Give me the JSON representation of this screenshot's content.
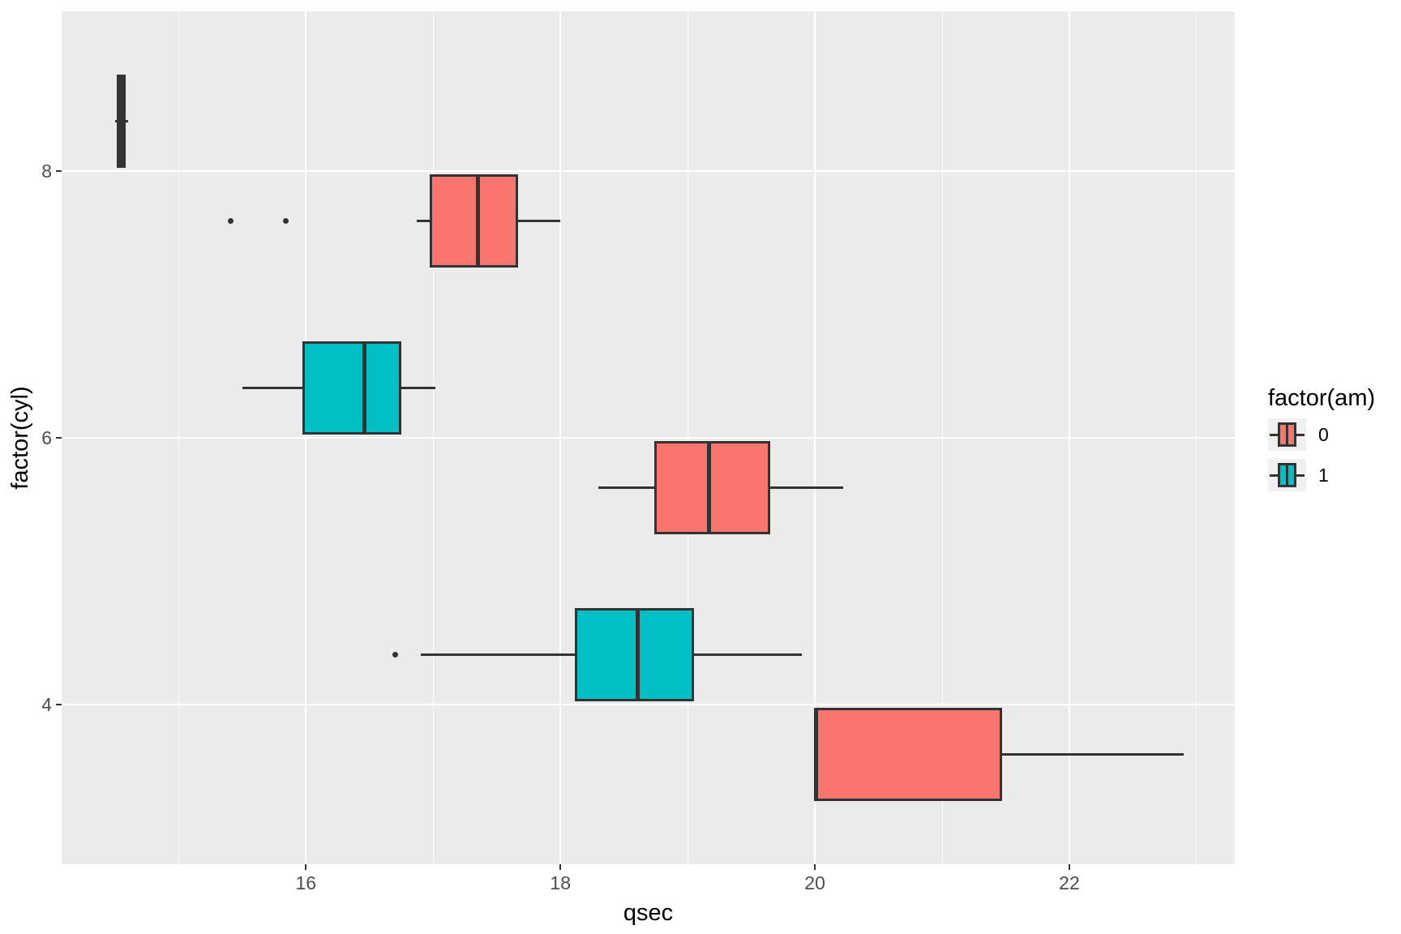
{
  "chart_data": {
    "type": "boxplot",
    "orientation": "horizontal",
    "xlabel": "qsec",
    "ylabel": "factor(cyl)",
    "x_ticks": [
      16,
      18,
      20,
      22
    ],
    "x_minor_ticks": [
      15,
      17,
      19,
      21,
      23
    ],
    "xlim": [
      14.08,
      23.3
    ],
    "y_categories": [
      "4",
      "6",
      "8"
    ],
    "legend": {
      "title": "factor(am)",
      "position": "right",
      "entries": [
        {
          "label": "0",
          "color": "#F8766D"
        },
        {
          "label": "1",
          "color": "#00BFC4"
        }
      ]
    },
    "series": [
      {
        "cyl": "8",
        "am": "1",
        "fill": "#00BFC4",
        "whisker_low": 14.5,
        "q1": 14.525,
        "median": 14.55,
        "q3": 14.575,
        "whisker_high": 14.6,
        "outliers": []
      },
      {
        "cyl": "8",
        "am": "0",
        "fill": "#F8766D",
        "whisker_low": 16.87,
        "q1": 16.98,
        "median": 17.35,
        "q3": 17.66,
        "whisker_high": 18.0,
        "outliers": [
          15.41,
          15.84
        ]
      },
      {
        "cyl": "6",
        "am": "1",
        "fill": "#00BFC4",
        "whisker_low": 15.5,
        "q1": 15.98,
        "median": 16.46,
        "q3": 16.74,
        "whisker_high": 17.02,
        "outliers": []
      },
      {
        "cyl": "6",
        "am": "0",
        "fill": "#F8766D",
        "whisker_low": 18.3,
        "q1": 18.75,
        "median": 19.17,
        "q3": 19.64,
        "whisker_high": 20.22,
        "outliers": []
      },
      {
        "cyl": "4",
        "am": "1",
        "fill": "#00BFC4",
        "whisker_low": 16.9,
        "q1": 18.12,
        "median": 18.61,
        "q3": 19.04,
        "whisker_high": 19.9,
        "outliers": [
          16.7
        ]
      },
      {
        "cyl": "4",
        "am": "0",
        "fill": "#F8766D",
        "whisker_low": 20.0,
        "q1": 20.005,
        "median": 20.01,
        "q3": 21.46,
        "whisker_high": 22.9,
        "outliers": []
      }
    ]
  },
  "colors": {
    "background": "#FFFFFF",
    "panel_bg": "#EBEBEB",
    "grid": "#FFFFFF",
    "box_stroke": "#333333",
    "tick_mark": "#333333",
    "tick_label": "#4D4D4D",
    "axis_title": "#000000",
    "legend_key_bg": "#F0F0F0"
  }
}
